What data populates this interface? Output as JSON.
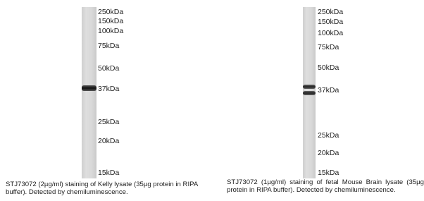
{
  "panels": [
    {
      "markers": [
        "250kDa",
        "150kDa",
        "100kDa",
        "75kDa",
        "50kDa",
        "37kDa",
        "25kDa",
        "20kDa",
        "15kDa"
      ],
      "caption": "STJ73072 (2µg/ml) staining of Kelly lysate (35µg protein in RIPA buffer). Detected by chemiluminescence."
    },
    {
      "markers": [
        "250kDa",
        "150kDa",
        "100kDa",
        "75kDa",
        "50kDa",
        "37kDa",
        "25kDa",
        "20kDa",
        "15kDa"
      ],
      "caption": "STJ73072 (1µg/ml) staining of fetal Mouse Brain lysate (35µg protein in RIPA buffer). Detected by chemiluminescence."
    }
  ]
}
